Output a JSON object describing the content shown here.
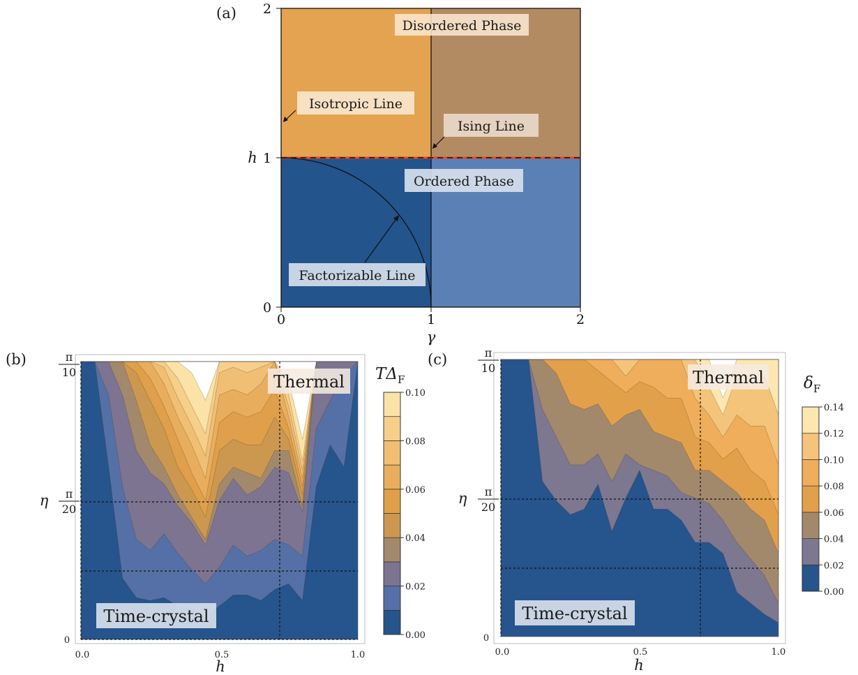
{
  "panel_a": {
    "label": "(a)",
    "xlabel": "γ",
    "ylabel": "h",
    "xticks": [
      "0",
      "1",
      "2"
    ],
    "yticks": [
      "0",
      "1",
      "2"
    ],
    "annotations": {
      "disordered": "Disordered Phase",
      "ordered": "Ordered Phase",
      "isotropic": "Isotropic Line",
      "ising": "Ising Line",
      "factorizable": "Factorizable Line"
    },
    "colors": {
      "disordered_left": "#e4a350",
      "disordered_right": "#b38b63",
      "ordered_left": "#23548c",
      "ordered_right": "#5b80b5",
      "critical_line": "#e04a24"
    }
  },
  "panel_b": {
    "label": "(b)",
    "xlabel": "h",
    "ylabel": "η",
    "xticks": [
      "0.0",
      "0.5",
      "1.0"
    ],
    "yticks": {
      "top": "π",
      "top_den": "10",
      "mid": "π",
      "mid_den": "20",
      "zero": "0"
    },
    "region_thermal": "Thermal",
    "region_tc": "Time-crystal",
    "colorbar_title": "TΔ",
    "colorbar_sub": "F",
    "colorbar_ticks": [
      "0.00",
      "0.02",
      "0.04",
      "0.06",
      "0.08",
      "0.10"
    ]
  },
  "panel_c": {
    "label": "(c)",
    "xlabel": "h",
    "ylabel": "η",
    "xticks": [
      "0.0",
      "0.5",
      "1.0"
    ],
    "yticks": {
      "top": "π",
      "top_den": "10",
      "mid": "π",
      "mid_den": "20",
      "zero": "0"
    },
    "region_thermal": "Thermal",
    "region_tc": "Time-crystal",
    "colorbar_title": "δ",
    "colorbar_sub": "F",
    "colorbar_ticks": [
      "0.00",
      "0.02",
      "0.04",
      "0.06",
      "0.08",
      "0.10",
      "0.12",
      "0.14"
    ]
  },
  "chart_data": [
    {
      "type": "heatmap",
      "xlabel": "γ",
      "ylabel": "h",
      "xlim": [
        0,
        2
      ],
      "ylim": [
        0,
        2
      ],
      "regions": [
        {
          "name": "Disordered Phase",
          "h_range": [
            1,
            2
          ],
          "gamma_range": [
            0,
            2
          ]
        },
        {
          "name": "Ordered Phase",
          "h_range": [
            0,
            1
          ],
          "gamma_range": [
            0,
            2
          ]
        }
      ],
      "lines": [
        {
          "name": "Isotropic Line",
          "gamma": 0
        },
        {
          "name": "Ising Line",
          "gamma": 1
        },
        {
          "name": "critical line",
          "h": 1
        },
        {
          "name": "Factorizable Line",
          "equation": "h^2 + γ^2 = 1"
        }
      ]
    },
    {
      "type": "heatmap",
      "xlabel": "h",
      "ylabel": "η",
      "xlim": [
        0,
        1
      ],
      "ylim": [
        0,
        0.314
      ],
      "colorbar": {
        "label": "TΔ_F",
        "levels": [
          0,
          0.01,
          0.02,
          0.03,
          0.04,
          0.05,
          0.06,
          0.07,
          0.08,
          0.09,
          0.1
        ]
      },
      "level_colors": [
        "#26548c",
        "#5570a6",
        "#7c7490",
        "#a3896c",
        "#cc9850",
        "#e09f4a",
        "#e8ae5e",
        "#f0bf73",
        "#f6cf8a",
        "#fbe2a6",
        "#ffffff"
      ],
      "h": [
        0,
        0.05,
        0.1,
        0.15,
        0.2,
        0.25,
        0.3,
        0.35,
        0.4,
        0.45,
        0.5,
        0.55,
        0.6,
        0.65,
        0.7,
        0.75,
        0.8,
        0.85,
        0.9,
        0.95,
        1.0
      ],
      "eta_fraction_thresholds": [
        [
          1.05,
          1.05,
          1.05,
          1.05,
          1.05,
          1.05,
          1.05,
          1.05,
          1.05,
          1.05
        ],
        [
          1.05,
          1.05,
          1.05,
          1.05,
          1.05,
          1.05,
          1.05,
          1.05,
          1.05,
          1.05
        ],
        [
          0.62,
          0.88,
          1.05,
          1.05,
          1.05,
          1.05,
          1.05,
          1.05,
          1.05,
          1.05
        ],
        [
          0.22,
          0.55,
          0.88,
          1.05,
          1.05,
          1.05,
          1.05,
          1.05,
          1.05,
          1.05
        ],
        [
          0.15,
          0.36,
          0.68,
          0.86,
          0.96,
          1.05,
          1.05,
          1.05,
          1.05,
          1.05
        ],
        [
          0.14,
          0.32,
          0.6,
          0.7,
          0.86,
          0.94,
          1.02,
          1.05,
          1.05,
          1.05
        ],
        [
          0.15,
          0.38,
          0.56,
          0.62,
          0.76,
          0.84,
          0.92,
          0.98,
          1.05,
          1.05
        ],
        [
          0.12,
          0.31,
          0.48,
          0.52,
          0.62,
          0.72,
          0.8,
          0.87,
          0.94,
          1.05
        ],
        [
          0.11,
          0.25,
          0.42,
          0.44,
          0.54,
          0.6,
          0.7,
          0.77,
          0.84,
          0.96
        ],
        [
          0.08,
          0.2,
          0.34,
          0.36,
          0.44,
          0.5,
          0.58,
          0.66,
          0.74,
          0.86
        ],
        [
          0.12,
          0.26,
          0.5,
          0.56,
          0.68,
          0.78,
          0.88,
          0.96,
          1.05,
          1.05
        ],
        [
          0.16,
          0.34,
          0.58,
          0.62,
          0.72,
          0.82,
          0.9,
          0.98,
          1.05,
          1.05
        ],
        [
          0.16,
          0.3,
          0.52,
          0.6,
          0.7,
          0.8,
          0.88,
          0.96,
          1.03,
          1.05
        ],
        [
          0.14,
          0.32,
          0.55,
          0.58,
          0.7,
          0.82,
          0.92,
          0.98,
          1.05,
          1.05
        ],
        [
          0.18,
          0.36,
          0.62,
          0.68,
          0.8,
          0.9,
          1.0,
          1.05,
          1.05,
          1.05
        ],
        [
          0.2,
          0.34,
          0.6,
          0.68,
          0.72,
          0.76,
          0.8,
          0.84,
          0.88,
          0.93
        ],
        [
          0.14,
          0.3,
          0.46,
          0.48,
          0.52,
          0.55,
          0.58,
          0.61,
          0.64,
          0.72
        ],
        [
          0.55,
          0.76,
          1.05,
          1.05,
          1.05,
          1.05,
          1.05,
          1.05,
          1.05,
          1.05
        ],
        [
          0.7,
          0.86,
          1.05,
          1.05,
          1.05,
          1.05,
          1.05,
          1.05,
          1.05,
          1.05
        ],
        [
          0.62,
          0.95,
          1.05,
          1.05,
          1.05,
          1.05,
          1.05,
          1.05,
          1.05,
          1.05
        ],
        [
          1.05,
          1.05,
          1.05,
          1.05,
          1.05,
          1.05,
          1.05,
          1.05,
          1.05,
          1.05
        ]
      ]
    },
    {
      "type": "heatmap",
      "xlabel": "h",
      "ylabel": "η",
      "xlim": [
        0,
        1
      ],
      "ylim": [
        0,
        0.314
      ],
      "colorbar": {
        "label": "δ_F",
        "levels": [
          0,
          0.02,
          0.04,
          0.06,
          0.08,
          0.1,
          0.12,
          0.14
        ]
      },
      "level_colors": [
        "#26548c",
        "#7d7790",
        "#a3896c",
        "#e3a04a",
        "#eeae5c",
        "#f4c47a",
        "#fce7b0",
        "#ffffff"
      ],
      "h": [
        0,
        0.05,
        0.1,
        0.15,
        0.2,
        0.25,
        0.3,
        0.35,
        0.4,
        0.45,
        0.5,
        0.55,
        0.6,
        0.65,
        0.7,
        0.75,
        0.8,
        0.85,
        0.9,
        0.95,
        1.0
      ],
      "eta_fraction_thresholds": [
        [
          1.05,
          1.05,
          1.05,
          1.05,
          1.05,
          1.05,
          1.05
        ],
        [
          1.05,
          1.05,
          1.05,
          1.05,
          1.05,
          1.05,
          1.05
        ],
        [
          1.05,
          1.05,
          1.05,
          1.05,
          1.05,
          1.05,
          1.05
        ],
        [
          0.56,
          0.82,
          1.05,
          1.05,
          1.05,
          1.05,
          1.05
        ],
        [
          0.49,
          0.72,
          0.95,
          1.05,
          1.05,
          1.05,
          1.05
        ],
        [
          0.44,
          0.62,
          0.84,
          1.05,
          1.05,
          1.05,
          1.05
        ],
        [
          0.46,
          0.62,
          0.82,
          1.05,
          1.05,
          1.05,
          1.05
        ],
        [
          0.55,
          0.66,
          0.84,
          0.96,
          1.05,
          1.05,
          1.05
        ],
        [
          0.38,
          0.56,
          0.76,
          0.92,
          1.05,
          1.05,
          1.05
        ],
        [
          0.5,
          0.66,
          0.8,
          0.88,
          0.94,
          1.05,
          1.05
        ],
        [
          0.6,
          0.62,
          0.82,
          0.92,
          1.02,
          1.05,
          1.05
        ],
        [
          0.46,
          0.6,
          0.74,
          0.9,
          1.05,
          1.05,
          1.05
        ],
        [
          0.46,
          0.58,
          0.72,
          0.86,
          1.05,
          1.05,
          1.05
        ],
        [
          0.42,
          0.52,
          0.7,
          0.86,
          1.05,
          1.05,
          1.05
        ],
        [
          0.34,
          0.5,
          0.6,
          0.72,
          0.86,
          1.05,
          1.05
        ],
        [
          0.34,
          0.48,
          0.6,
          0.7,
          0.8,
          0.9,
          1.05
        ],
        [
          0.3,
          0.42,
          0.56,
          0.64,
          0.72,
          0.8,
          0.86
        ],
        [
          0.16,
          0.34,
          0.52,
          0.68,
          0.8,
          0.94,
          1.05
        ],
        [
          0.12,
          0.28,
          0.46,
          0.6,
          0.76,
          0.9,
          1.05
        ],
        [
          0.08,
          0.22,
          0.42,
          0.56,
          0.76,
          0.94,
          1.05
        ],
        [
          0.05,
          0.12,
          0.3,
          0.44,
          0.62,
          0.8,
          1.05
        ]
      ]
    }
  ]
}
